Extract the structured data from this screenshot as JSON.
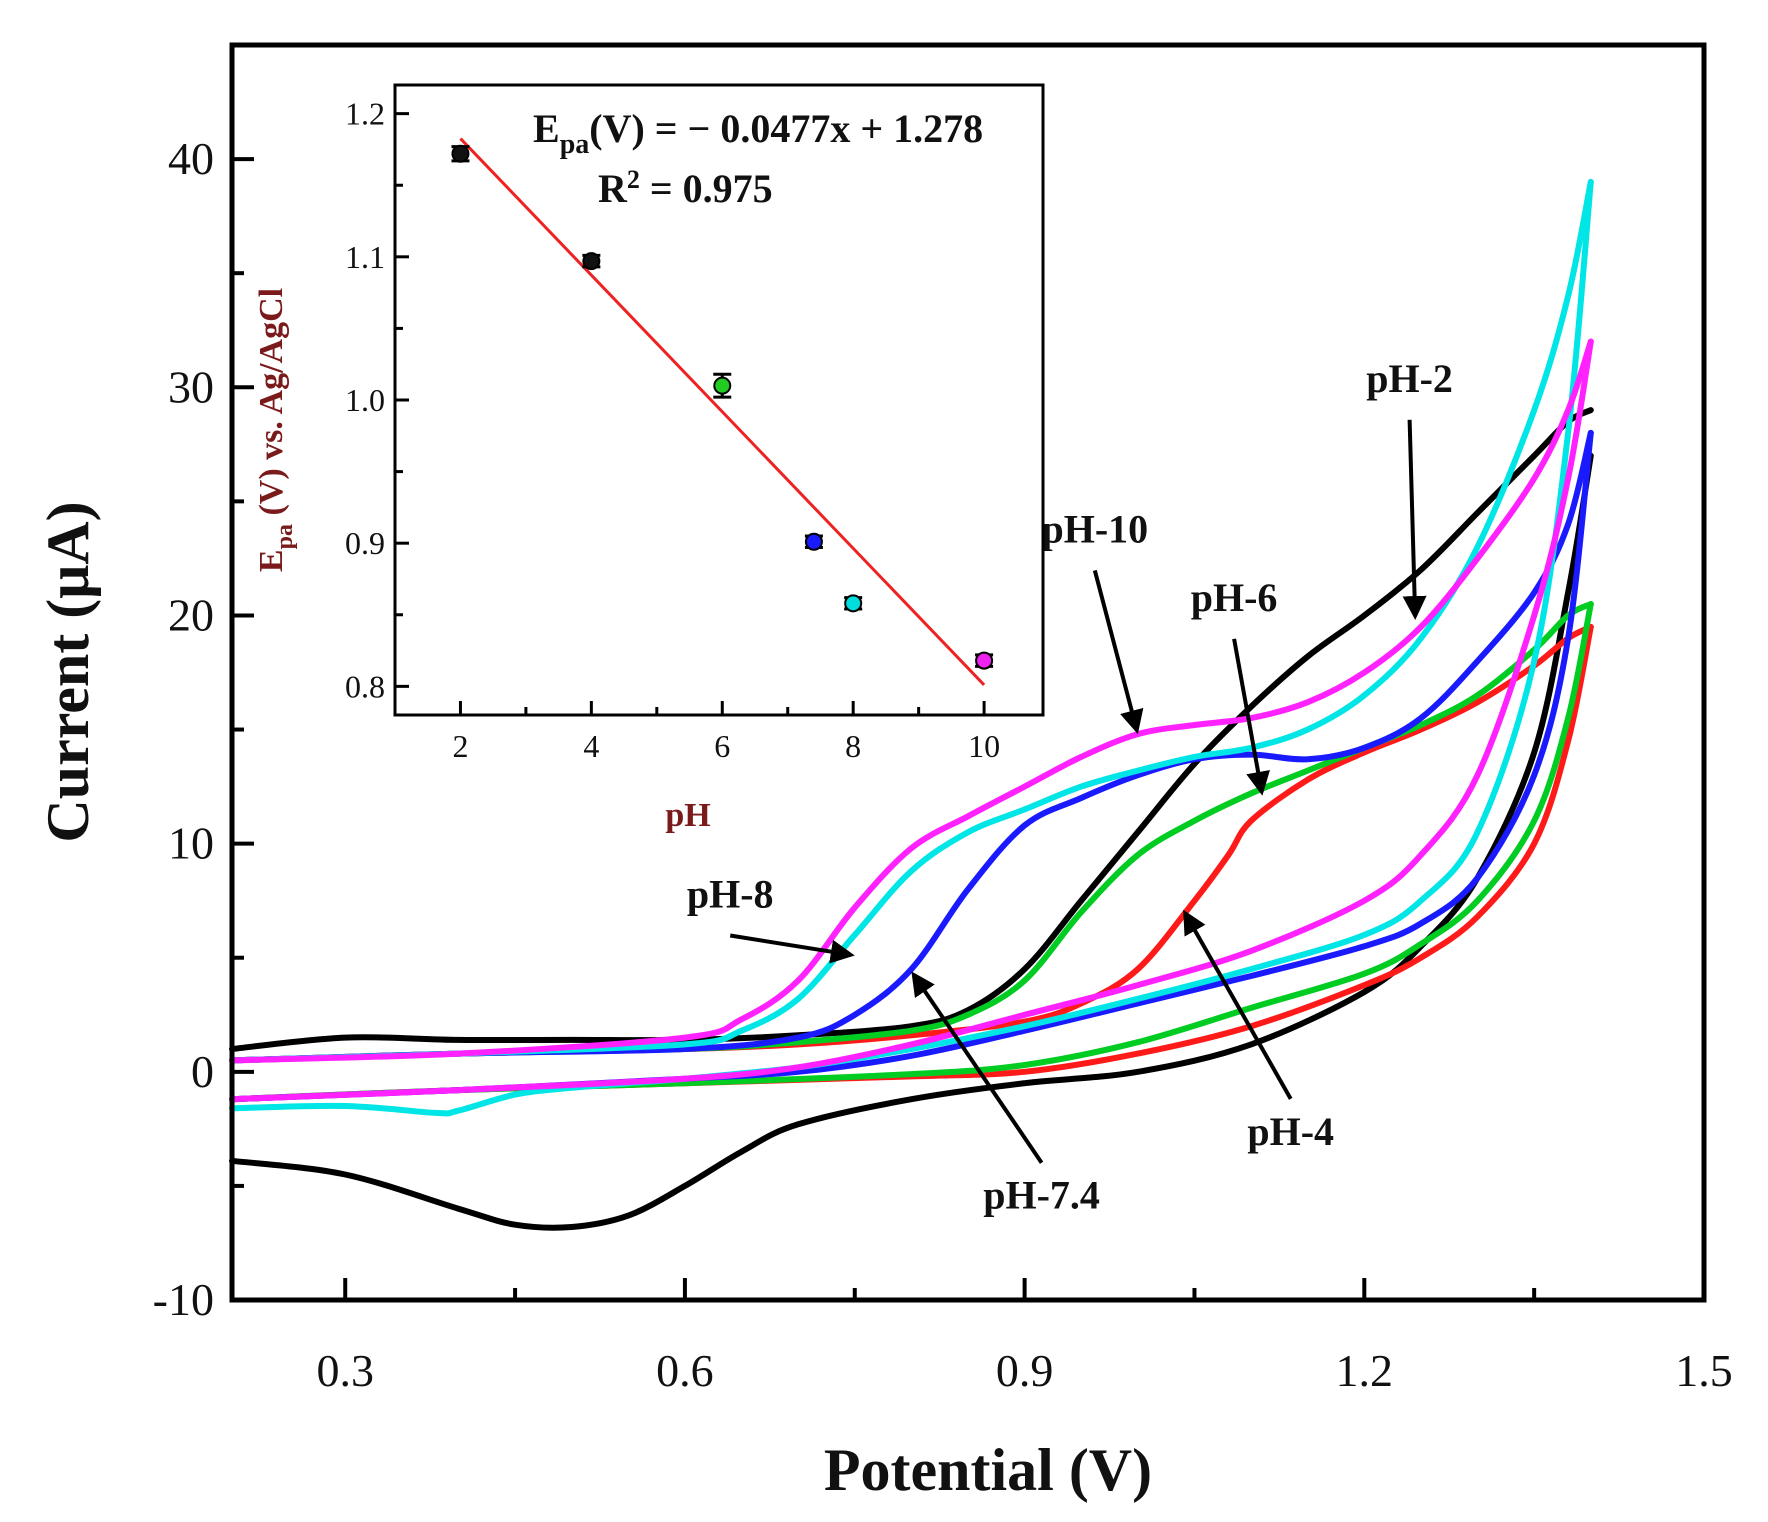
{
  "chart_data": [
    {
      "type": "line",
      "subtype": "cyclic-voltammogram",
      "xlabel": "Potential (V)",
      "ylabel": "Current (μA)",
      "xlim": [
        0.2,
        1.5
      ],
      "ylim": [
        -10,
        45
      ],
      "xticks": [
        0.3,
        0.6,
        0.9,
        1.2,
        1.5
      ],
      "xtick_labels": [
        "0.3",
        "0.6",
        "0.9",
        "1.2",
        "1.5"
      ],
      "yticks": [
        -10,
        0,
        10,
        20,
        30,
        40
      ],
      "ytick_labels": [
        "-10",
        "0",
        "10",
        "20",
        "30",
        "40"
      ],
      "series": [
        {
          "name": "pH-2",
          "color": "#000000",
          "upper": [
            [
              0.2,
              1.0
            ],
            [
              0.3,
              1.5
            ],
            [
              0.4,
              1.4
            ],
            [
              0.5,
              1.4
            ],
            [
              0.6,
              1.4
            ],
            [
              0.7,
              1.6
            ],
            [
              0.8,
              2.0
            ],
            [
              0.85,
              2.7
            ],
            [
              0.9,
              4.5
            ],
            [
              0.95,
              7.5
            ],
            [
              1.0,
              10.5
            ],
            [
              1.05,
              13.5
            ],
            [
              1.1,
              16.0
            ],
            [
              1.15,
              18.2
            ],
            [
              1.2,
              20.0
            ],
            [
              1.25,
              22.0
            ],
            [
              1.3,
              24.5
            ],
            [
              1.35,
              27.0
            ],
            [
              1.38,
              28.5
            ],
            [
              1.4,
              29.0
            ]
          ],
          "lower": [
            [
              0.2,
              -3.9
            ],
            [
              0.3,
              -4.5
            ],
            [
              0.4,
              -6.0
            ],
            [
              0.45,
              -6.7
            ],
            [
              0.5,
              -6.8
            ],
            [
              0.55,
              -6.3
            ],
            [
              0.6,
              -5.0
            ],
            [
              0.65,
              -3.5
            ],
            [
              0.7,
              -2.3
            ],
            [
              0.8,
              -1.2
            ],
            [
              0.9,
              -0.5
            ],
            [
              1.0,
              0.0
            ],
            [
              1.1,
              1.2
            ],
            [
              1.2,
              3.5
            ],
            [
              1.25,
              5.5
            ],
            [
              1.3,
              8.5
            ],
            [
              1.35,
              14.0
            ],
            [
              1.38,
              21.0
            ],
            [
              1.4,
              27.0
            ]
          ]
        },
        {
          "name": "pH-4",
          "color": "#ff1a1a",
          "upper": [
            [
              0.2,
              0.5
            ],
            [
              0.4,
              0.8
            ],
            [
              0.6,
              1.0
            ],
            [
              0.7,
              1.2
            ],
            [
              0.8,
              1.6
            ],
            [
              0.9,
              2.2
            ],
            [
              0.95,
              3.0
            ],
            [
              1.0,
              4.5
            ],
            [
              1.05,
              7.5
            ],
            [
              1.08,
              9.5
            ],
            [
              1.1,
              11.0
            ],
            [
              1.15,
              12.8
            ],
            [
              1.2,
              14.0
            ],
            [
              1.25,
              15.0
            ],
            [
              1.3,
              16.2
            ],
            [
              1.35,
              17.8
            ],
            [
              1.38,
              19.0
            ],
            [
              1.4,
              19.5
            ]
          ],
          "lower": [
            [
              0.2,
              -1.2
            ],
            [
              0.4,
              -0.8
            ],
            [
              0.6,
              -0.5
            ],
            [
              0.8,
              -0.2
            ],
            [
              0.9,
              0.0
            ],
            [
              1.0,
              0.8
            ],
            [
              1.1,
              2.0
            ],
            [
              1.2,
              3.8
            ],
            [
              1.25,
              5.0
            ],
            [
              1.3,
              6.8
            ],
            [
              1.35,
              10.0
            ],
            [
              1.38,
              14.5
            ],
            [
              1.4,
              19.5
            ]
          ]
        },
        {
          "name": "pH-6",
          "color": "#00cc22",
          "upper": [
            [
              0.2,
              0.5
            ],
            [
              0.4,
              0.8
            ],
            [
              0.6,
              1.0
            ],
            [
              0.7,
              1.3
            ],
            [
              0.8,
              1.8
            ],
            [
              0.85,
              2.5
            ],
            [
              0.9,
              4.0
            ],
            [
              0.95,
              7.0
            ],
            [
              1.0,
              9.5
            ],
            [
              1.05,
              11.0
            ],
            [
              1.1,
              12.2
            ],
            [
              1.15,
              13.2
            ],
            [
              1.2,
              14.2
            ],
            [
              1.25,
              15.2
            ],
            [
              1.3,
              16.5
            ],
            [
              1.35,
              18.5
            ],
            [
              1.38,
              20.0
            ],
            [
              1.4,
              20.5
            ]
          ],
          "lower": [
            [
              0.2,
              -1.2
            ],
            [
              0.4,
              -0.8
            ],
            [
              0.6,
              -0.5
            ],
            [
              0.8,
              -0.1
            ],
            [
              0.9,
              0.3
            ],
            [
              1.0,
              1.3
            ],
            [
              1.1,
              2.8
            ],
            [
              1.2,
              4.3
            ],
            [
              1.25,
              5.6
            ],
            [
              1.3,
              7.5
            ],
            [
              1.35,
              11.0
            ],
            [
              1.38,
              15.5
            ],
            [
              1.4,
              20.5
            ]
          ]
        },
        {
          "name": "pH-7.4",
          "color": "#1a1aff",
          "upper": [
            [
              0.2,
              0.5
            ],
            [
              0.4,
              0.8
            ],
            [
              0.6,
              1.0
            ],
            [
              0.7,
              1.5
            ],
            [
              0.75,
              2.5
            ],
            [
              0.8,
              4.5
            ],
            [
              0.85,
              8.0
            ],
            [
              0.9,
              10.8
            ],
            [
              0.95,
              12.0
            ],
            [
              1.0,
              13.0
            ],
            [
              1.05,
              13.7
            ],
            [
              1.1,
              13.9
            ],
            [
              1.15,
              13.7
            ],
            [
              1.2,
              14.2
            ],
            [
              1.25,
              15.5
            ],
            [
              1.3,
              18.0
            ],
            [
              1.35,
              21.0
            ],
            [
              1.38,
              24.0
            ],
            [
              1.4,
              28.0
            ]
          ],
          "lower": [
            [
              0.2,
              -1.2
            ],
            [
              0.4,
              -0.8
            ],
            [
              0.6,
              -0.3
            ],
            [
              0.7,
              0.0
            ],
            [
              0.8,
              0.7
            ],
            [
              0.9,
              1.8
            ],
            [
              1.0,
              3.0
            ],
            [
              1.1,
              4.2
            ],
            [
              1.2,
              5.5
            ],
            [
              1.25,
              6.5
            ],
            [
              1.3,
              8.5
            ],
            [
              1.35,
              13.0
            ],
            [
              1.38,
              19.0
            ],
            [
              1.4,
              28.0
            ]
          ]
        },
        {
          "name": "pH-8",
          "color": "#00e5e5",
          "upper": [
            [
              0.2,
              0.5
            ],
            [
              0.4,
              0.8
            ],
            [
              0.6,
              1.2
            ],
            [
              0.65,
              1.8
            ],
            [
              0.7,
              3.2
            ],
            [
              0.75,
              6.0
            ],
            [
              0.8,
              8.8
            ],
            [
              0.85,
              10.5
            ],
            [
              0.9,
              11.5
            ],
            [
              0.95,
              12.5
            ],
            [
              1.0,
              13.2
            ],
            [
              1.05,
              13.8
            ],
            [
              1.1,
              14.2
            ],
            [
              1.15,
              15.0
            ],
            [
              1.2,
              16.5
            ],
            [
              1.25,
              19.0
            ],
            [
              1.3,
              23.0
            ],
            [
              1.35,
              29.0
            ],
            [
              1.38,
              34.0
            ],
            [
              1.4,
              39.0
            ]
          ],
          "lower": [
            [
              0.2,
              -1.6
            ],
            [
              0.3,
              -1.5
            ],
            [
              0.38,
              -1.8
            ],
            [
              0.4,
              -1.7
            ],
            [
              0.45,
              -1.0
            ],
            [
              0.5,
              -0.7
            ],
            [
              0.6,
              -0.3
            ],
            [
              0.7,
              0.2
            ],
            [
              0.8,
              1.0
            ],
            [
              0.9,
              2.0
            ],
            [
              1.0,
              3.2
            ],
            [
              1.1,
              4.5
            ],
            [
              1.2,
              6.0
            ],
            [
              1.25,
              7.5
            ],
            [
              1.3,
              10.5
            ],
            [
              1.35,
              18.0
            ],
            [
              1.38,
              28.0
            ],
            [
              1.4,
              39.0
            ]
          ]
        },
        {
          "name": "pH-10",
          "color": "#ff22ff",
          "upper": [
            [
              0.2,
              0.5
            ],
            [
              0.4,
              0.8
            ],
            [
              0.6,
              1.5
            ],
            [
              0.65,
              2.3
            ],
            [
              0.7,
              4.0
            ],
            [
              0.75,
              7.2
            ],
            [
              0.8,
              9.8
            ],
            [
              0.85,
              11.2
            ],
            [
              0.9,
              12.5
            ],
            [
              0.95,
              13.8
            ],
            [
              1.0,
              14.8
            ],
            [
              1.05,
              15.2
            ],
            [
              1.1,
              15.5
            ],
            [
              1.15,
              16.2
            ],
            [
              1.2,
              17.5
            ],
            [
              1.25,
              19.5
            ],
            [
              1.3,
              22.5
            ],
            [
              1.35,
              26.0
            ],
            [
              1.38,
              29.0
            ],
            [
              1.4,
              32.0
            ]
          ],
          "lower": [
            [
              0.2,
              -1.2
            ],
            [
              0.4,
              -0.8
            ],
            [
              0.6,
              -0.3
            ],
            [
              0.7,
              0.2
            ],
            [
              0.8,
              1.2
            ],
            [
              0.9,
              2.5
            ],
            [
              1.0,
              3.8
            ],
            [
              1.1,
              5.3
            ],
            [
              1.2,
              7.5
            ],
            [
              1.25,
              9.5
            ],
            [
              1.3,
              13.0
            ],
            [
              1.35,
              20.0
            ],
            [
              1.38,
              26.0
            ],
            [
              1.4,
              32.0
            ]
          ]
        }
      ],
      "annotations": [
        {
          "text": "pH-2",
          "x": 1.24,
          "y": 29.8,
          "arrow_to": [
            1.245,
            19.8
          ]
        },
        {
          "text": "pH-10",
          "x": 0.962,
          "y": 23.2,
          "arrow_to": [
            1.0,
            14.8
          ]
        },
        {
          "text": "pH-6",
          "x": 1.085,
          "y": 20.2,
          "arrow_to": [
            1.11,
            12.1
          ]
        },
        {
          "text": "pH-8",
          "x": 0.64,
          "y": 7.2,
          "arrow_to": [
            0.75,
            5.1
          ]
        },
        {
          "text": "pH-7.4",
          "x": 0.915,
          "y": -6.0,
          "arrow_to": [
            0.8,
            4.4
          ]
        },
        {
          "text": "pH-4",
          "x": 1.135,
          "y": -3.2,
          "arrow_to": [
            1.04,
            7.1
          ]
        }
      ]
    },
    {
      "type": "scatter",
      "role": "inset",
      "xlabel": "pH",
      "ylabel_main": "E",
      "ylabel_sub": "pa",
      "ylabel_rest": " (V) vs. Ag/AgCl",
      "xlim": [
        1,
        10.9
      ],
      "ylim": [
        0.78,
        1.22
      ],
      "xticks": [
        2,
        4,
        6,
        8,
        10
      ],
      "xtick_labels": [
        "2",
        "4",
        "6",
        "8",
        "10"
      ],
      "yticks": [
        0.8,
        0.9,
        1.0,
        1.1,
        1.2
      ],
      "ytick_labels": [
        "0.8",
        "0.9",
        "1.0",
        "1.1",
        "1.2"
      ],
      "points": [
        {
          "x": 2,
          "y": 1.172,
          "err": 0.005,
          "color": "#111111"
        },
        {
          "x": 4,
          "y": 1.097,
          "err": 0.004,
          "color": "#111111"
        },
        {
          "x": 6,
          "y": 1.01,
          "err": 0.008,
          "color": "#22cc22"
        },
        {
          "x": 7.4,
          "y": 0.901,
          "err": 0.004,
          "color": "#1a1aff"
        },
        {
          "x": 8,
          "y": 0.858,
          "err": 0.004,
          "color": "#00dddd"
        },
        {
          "x": 10,
          "y": 0.818,
          "err": 0.004,
          "color": "#ee22ee"
        }
      ],
      "fit": {
        "slope": -0.0477,
        "intercept": 1.278,
        "x_range": [
          2,
          10
        ],
        "color": "#ee2222"
      },
      "equation": {
        "main": "E",
        "sub": "pa",
        "rest": "(V) = − 0.0477x + 1.278"
      },
      "r_squared": {
        "main": "R",
        "sup": "2",
        "rest": " = 0.975"
      }
    }
  ]
}
